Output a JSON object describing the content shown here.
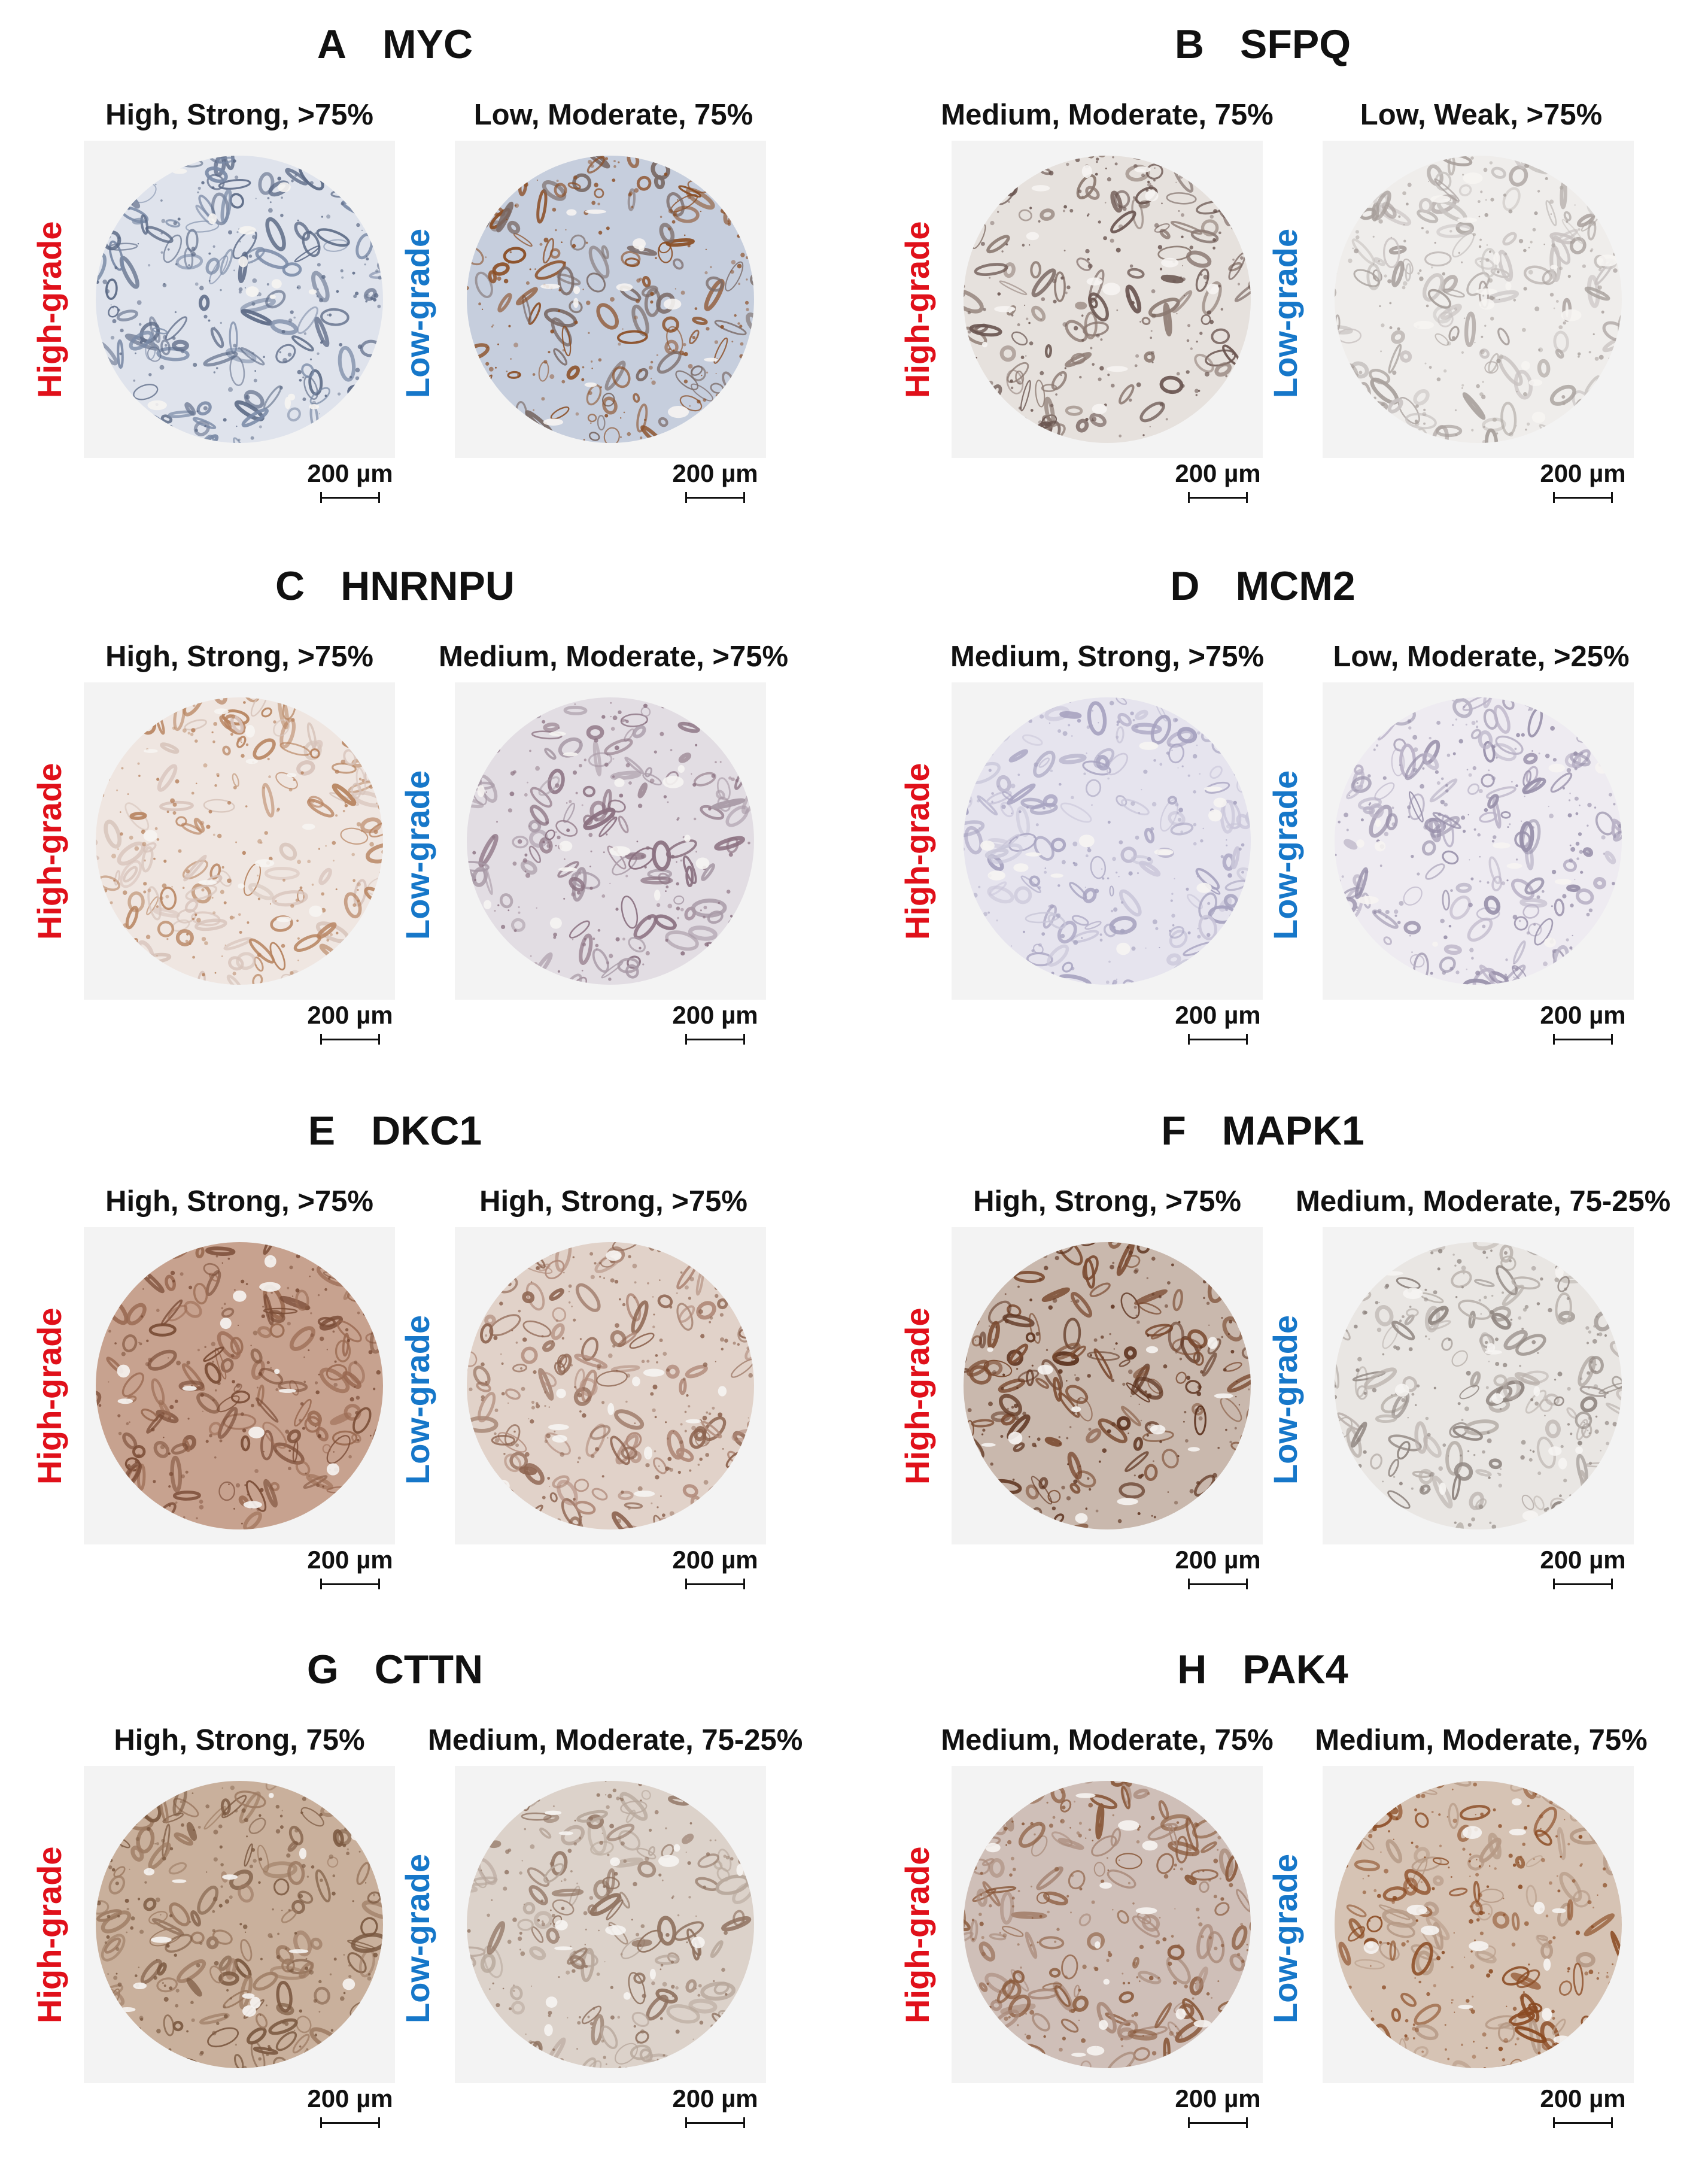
{
  "colors": {
    "high_grade": "#e0101a",
    "low_grade": "#1677c9"
  },
  "panels": [
    {
      "letter": "A",
      "gene": "MYC",
      "left": {
        "caption": "High, Strong, >75%",
        "grade": "High-grade",
        "scale": "200 µm",
        "stain": "#7a8aa6",
        "bg": "#dfe3ec",
        "dot": "#5c6a86"
      },
      "right": {
        "caption": "Low, Moderate, 75%",
        "grade": "Low-grade",
        "scale": "200 µm",
        "stain": "#7a6a66",
        "bg": "#c6cedd",
        "dot": "#8a4d24"
      }
    },
    {
      "letter": "B",
      "gene": "SFPQ",
      "left": {
        "caption": "Medium, Moderate, 75%",
        "grade": "High-grade",
        "scale": "200 µm",
        "stain": "#8c7a72",
        "bg": "#e6e1dd",
        "dot": "#6a5550"
      },
      "right": {
        "caption": "Low, Weak, >75%",
        "grade": "Low-grade",
        "scale": "200 µm",
        "stain": "#c9c4c2",
        "bg": "#efedeb",
        "dot": "#a8a09c"
      }
    },
    {
      "letter": "C",
      "gene": "HNRNPU",
      "left": {
        "caption": "High, Strong, >75%",
        "grade": "High-grade",
        "scale": "200 µm",
        "stain": "#d7c3ba",
        "bg": "#efe6e1",
        "dot": "#b7835f"
      },
      "right": {
        "caption": "Medium, Moderate, >75%",
        "grade": "Low-grade",
        "scale": "200 µm",
        "stain": "#a89aa6",
        "bg": "#e2dde3",
        "dot": "#8a7080"
      }
    },
    {
      "letter": "D",
      "gene": "MCM2",
      "left": {
        "caption": "Medium, Strong, >75%",
        "grade": "High-grade",
        "scale": "200 µm",
        "stain": "#c9c6d9",
        "bg": "#e6e4ee",
        "dot": "#a6a2bf"
      },
      "right": {
        "caption": "Low, Moderate, >25%",
        "grade": "Low-grade",
        "scale": "200 µm",
        "stain": "#bab3c7",
        "bg": "#eeebf1",
        "dot": "#9890aa"
      }
    },
    {
      "letter": "E",
      "gene": "DKC1",
      "left": {
        "caption": "High, Strong, >75%",
        "grade": "High-grade",
        "scale": "200 µm",
        "stain": "#9a6a52",
        "bg": "#c7a28f",
        "dot": "#7a4c36"
      },
      "right": {
        "caption": "High, Strong, >75%",
        "grade": "Low-grade",
        "scale": "200 µm",
        "stain": "#b08a7a",
        "bg": "#e1d2c9",
        "dot": "#8d6450"
      }
    },
    {
      "letter": "F",
      "gene": "MAPK1",
      "left": {
        "caption": "High, Strong, >75%",
        "grade": "High-grade",
        "scale": "200 µm",
        "stain": "#7a4a30",
        "bg": "#c9b8ad",
        "dot": "#5e3420"
      },
      "right": {
        "caption": "Medium, Moderate, 75-25%",
        "grade": "Low-grade",
        "scale": "200 µm",
        "stain": "#b9b1ac",
        "bg": "#e9e6e3",
        "dot": "#8f8580"
      }
    },
    {
      "letter": "G",
      "gene": "CTTN",
      "left": {
        "caption": "High, Strong, 75%",
        "grade": "High-grade",
        "scale": "200 µm",
        "stain": "#9c7a62",
        "bg": "#c9b09c",
        "dot": "#7a5840"
      },
      "right": {
        "caption": "Medium, Moderate, 75-25%",
        "grade": "Low-grade",
        "scale": "200 µm",
        "stain": "#b8a89c",
        "bg": "#dcd2ca",
        "dot": "#8f7260"
      }
    },
    {
      "letter": "H",
      "gene": "PAK4",
      "left": {
        "caption": "Medium, Moderate, 75%",
        "grade": "High-grade",
        "scale": "200 µm",
        "stain": "#a98a7a",
        "bg": "#cfbfb8",
        "dot": "#8a5a3c"
      },
      "right": {
        "caption": "Medium, Moderate, 75%",
        "grade": "Low-grade",
        "scale": "200 µm",
        "stain": "#b69a86",
        "bg": "#d6c3b4",
        "dot": "#8a4a22"
      }
    }
  ]
}
